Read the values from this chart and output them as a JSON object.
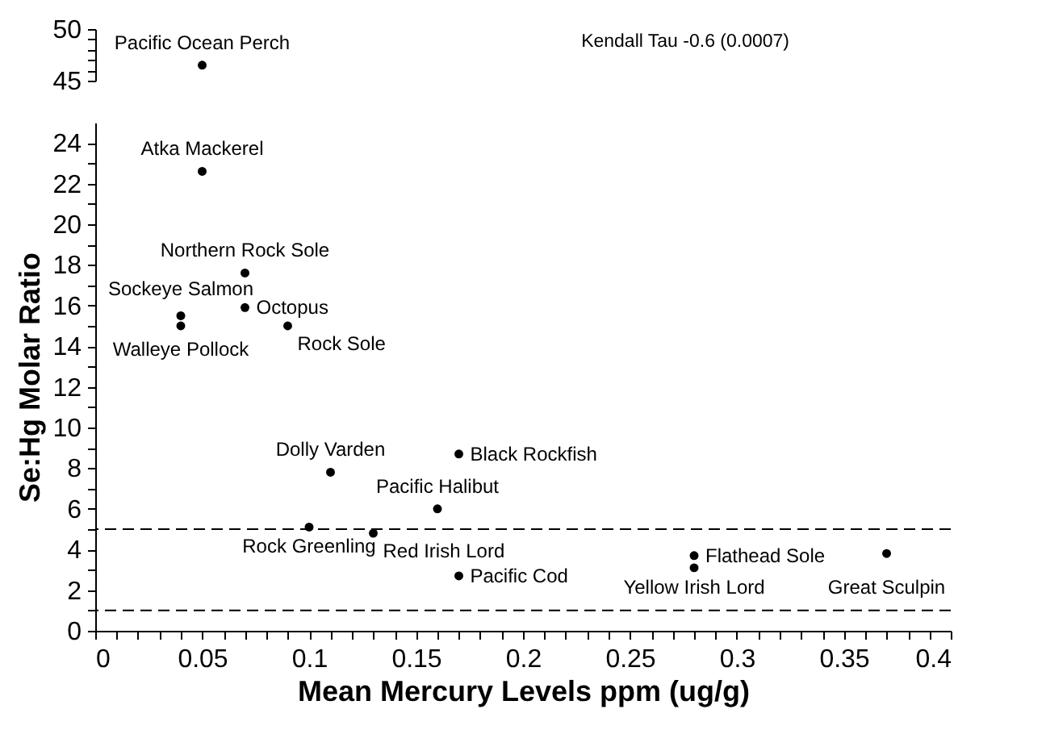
{
  "chart_data": [
    {
      "type": "scatter",
      "x": [
        0.05
      ],
      "values": [
        46.5
      ],
      "color": "#000000",
      "marker": "circle",
      "xlim": [
        0,
        0.4
      ],
      "ylim": [
        45,
        50
      ],
      "yticks": [
        45,
        {
          "value": 46,
          "label": null
        },
        {
          "value": 47,
          "label": null
        },
        {
          "value": 48,
          "label": null
        },
        {
          "value": 49,
          "label": null
        },
        50
      ],
      "tick_labels": "y",
      "annotations": [
        {
          "text": "Pacific Ocean Perch",
          "x": 0.05,
          "y": 46.5
        },
        "Kendall Tau -0.6 (0.0007)"
      ]
    },
    {
      "type": "scatter",
      "x": [
        0.05,
        0.07,
        0.04,
        0.07,
        0.04,
        0.09,
        0.11,
        0.17,
        0.16,
        0.1,
        0.13,
        0.17,
        0.28,
        0.28,
        0.37
      ],
      "values": [
        22.6,
        17.6,
        15.5,
        15.9,
        15.0,
        15.0,
        7.8,
        8.7,
        6.0,
        5.1,
        4.8,
        2.7,
        3.7,
        3.1,
        3.8
      ],
      "color": "#000000",
      "marker": "circle",
      "xlim": [
        0,
        0.4
      ],
      "ylim": [
        0,
        25
      ],
      "xticks": [
        0,
        {
          "value": 0.01,
          "label": null
        },
        {
          "value": 0.02,
          "label": null
        },
        {
          "value": 0.03,
          "label": null
        },
        {
          "value": 0.04,
          "label": null
        },
        0.05,
        {
          "value": 0.06,
          "label": null
        },
        {
          "value": 0.07,
          "label": null
        },
        {
          "value": 0.08,
          "label": null
        },
        {
          "value": 0.09,
          "label": null
        },
        0.1,
        {
          "value": 0.11,
          "label": null
        },
        {
          "value": 0.12,
          "label": null
        },
        {
          "value": 0.13,
          "label": null
        },
        {
          "value": 0.14,
          "label": null
        },
        0.15,
        {
          "value": 0.16,
          "label": null
        },
        {
          "value": 0.17,
          "label": null
        },
        {
          "value": 0.18,
          "label": null
        },
        {
          "value": 0.19,
          "label": null
        },
        0.2,
        {
          "value": 0.21,
          "label": null
        },
        {
          "value": 0.22,
          "label": null
        },
        {
          "value": 0.23,
          "label": null
        },
        {
          "value": 0.24,
          "label": null
        },
        0.25,
        {
          "value": 0.26,
          "label": null
        },
        {
          "value": 0.27,
          "label": null
        },
        {
          "value": 0.28,
          "label": null
        },
        {
          "value": 0.29,
          "label": null
        },
        0.3,
        {
          "value": 0.31,
          "label": null
        },
        {
          "value": 0.32,
          "label": null
        },
        {
          "value": 0.33,
          "label": null
        },
        {
          "value": 0.34,
          "label": null
        },
        0.35,
        {
          "value": 0.36,
          "label": null
        },
        {
          "value": 0.37,
          "label": null
        },
        {
          "value": 0.38,
          "label": null
        },
        {
          "value": 0.39,
          "label": null
        },
        0.4
      ],
      "yticks": [
        0,
        {
          "value": 1,
          "label": null
        },
        2,
        {
          "value": 3,
          "label": null
        },
        4,
        {
          "value": 5,
          "label": null
        },
        6,
        {
          "value": 7,
          "label": null
        },
        8,
        {
          "value": 9,
          "label": null
        },
        10,
        {
          "value": 11,
          "label": null
        },
        12,
        {
          "value": 13,
          "label": null
        },
        14,
        {
          "value": 15,
          "label": null
        },
        16,
        {
          "value": 17,
          "label": null
        },
        18,
        {
          "value": 19,
          "label": null
        },
        20,
        {
          "value": 21,
          "label": null
        },
        22,
        {
          "value": 23,
          "label": null
        },
        24
      ],
      "xlabel": "Mean Mercury Levels ppm (ug/g)",
      "ylabel": "Se:Hg Molar Ratio",
      "ref_lines": [
        {
          "axis": "y",
          "value": 5,
          "color": "#000000",
          "line_style": "dashed"
        },
        {
          "axis": "y",
          "value": 1,
          "color": "#000000",
          "line_style": "dashed"
        }
      ],
      "annotations": [
        {
          "text": "Atka Mackerel",
          "x": 0.05,
          "y": 22.6
        },
        {
          "text": "Northern Rock Sole",
          "x": 0.07,
          "y": 17.6
        },
        {
          "text": "Walleye Pollock",
          "x": 0.04,
          "y": 15.5
        },
        {
          "text": "Octopus",
          "x": 0.07,
          "y": 15.9
        },
        {
          "text": "Sockeye Salmon",
          "x": 0.04,
          "y": 15.0
        },
        {
          "text": "Rock Sole",
          "x": 0.09,
          "y": 15.0
        },
        {
          "text": "Dolly Varden",
          "x": 0.11,
          "y": 7.8
        },
        {
          "text": "Black Rockfish",
          "x": 0.17,
          "y": 8.7
        },
        {
          "text": "Pacific Halibut",
          "x": 0.16,
          "y": 6.0
        },
        {
          "text": "Rock Greenling",
          "x": 0.1,
          "y": 5.1
        },
        {
          "text": "Red Irish Lord",
          "x": 0.13,
          "y": 4.8
        },
        {
          "text": "Pacific Cod",
          "x": 0.17,
          "y": 2.7
        },
        {
          "text": "Flathead Sole",
          "x": 0.28,
          "y": 3.7
        },
        {
          "text": "Yellow Irish Lord",
          "x": 0.28,
          "y": 3.1
        },
        {
          "text": "Great Sculpin",
          "x": 0.37,
          "y": 3.8
        }
      ]
    }
  ]
}
